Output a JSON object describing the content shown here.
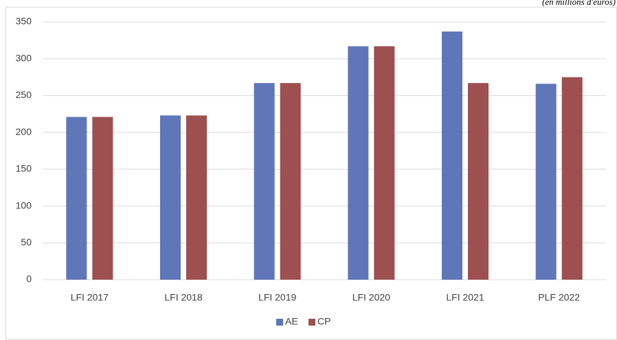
{
  "chart_data": {
    "type": "bar",
    "subtitle": "(en millions d'euros)",
    "categories": [
      "LFI 2017",
      "LFI 2018",
      "LFI 2019",
      "LFI 2020",
      "LFI 2021",
      "PLF 2022"
    ],
    "series": [
      {
        "name": "AE",
        "color": "#5f77b8",
        "values": [
          221,
          223,
          267,
          317,
          337,
          266
        ]
      },
      {
        "name": "CP",
        "color": "#9e4f4f",
        "values": [
          221,
          223,
          267,
          317,
          267,
          275
        ]
      }
    ],
    "ylim": [
      0,
      350
    ],
    "yticks": [
      0,
      50,
      100,
      150,
      200,
      250,
      300,
      350
    ],
    "grid": true,
    "legend": "bottom"
  }
}
